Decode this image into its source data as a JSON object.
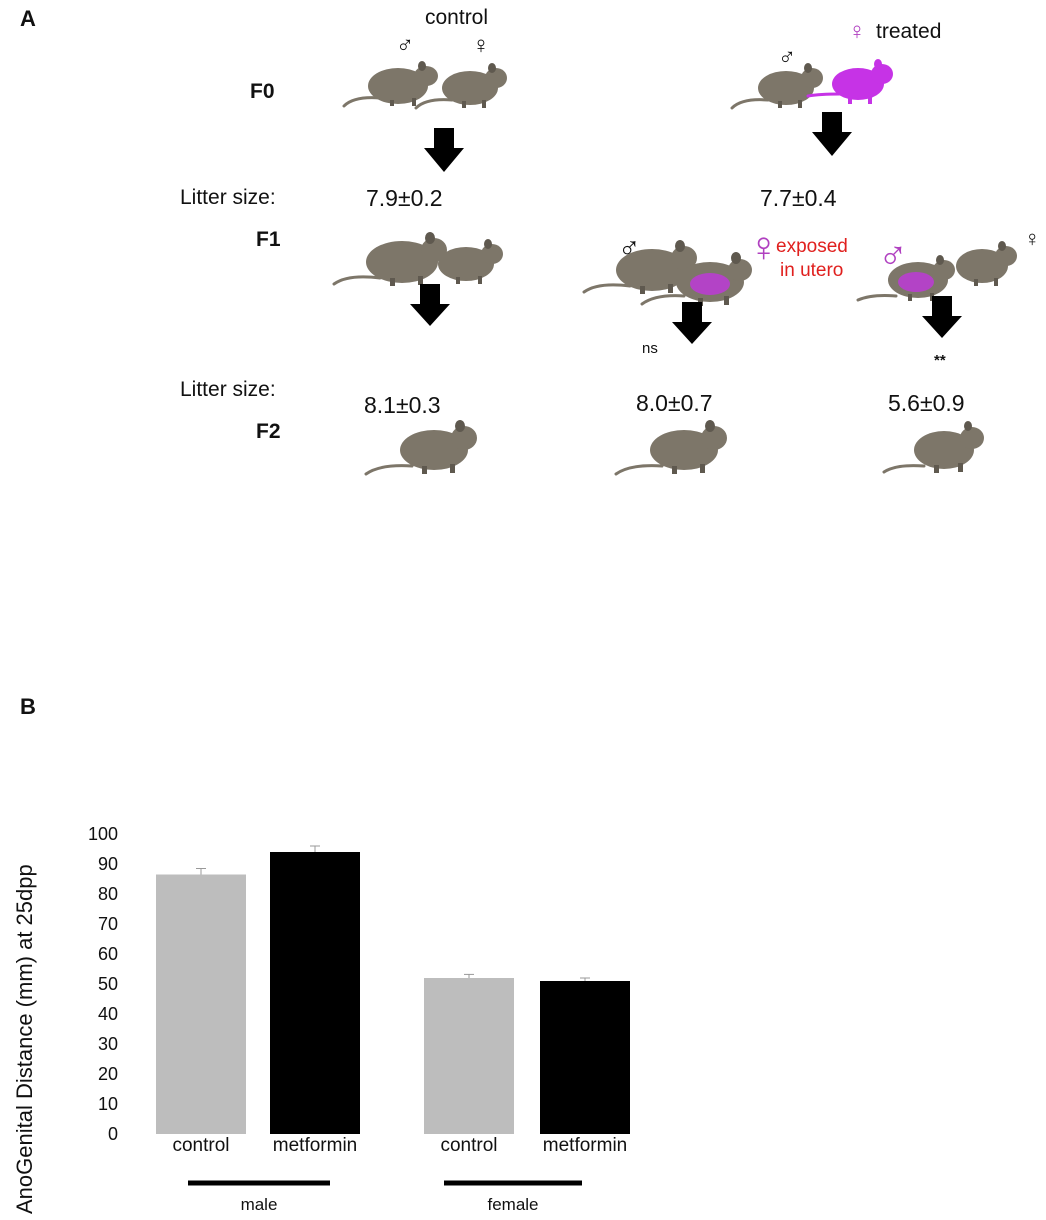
{
  "panel_a": {
    "label": "A",
    "control_label": "control",
    "treated_label": "treated",
    "male_symbol": "♂",
    "female_symbol": "♀",
    "generations": {
      "f0": "F0",
      "f1": "F1",
      "f2": "F2"
    },
    "litter_size_label": "Litter size:",
    "f1_litter_control": "7.9±0.2",
    "f1_litter_treated": "7.7±0.4",
    "exposed_label_line1": "exposed",
    "exposed_label_line2": "in utero",
    "ns_label": "ns",
    "sig_label": "**",
    "f2_litter_control": "8.1±0.3",
    "f2_litter_exposed_female": "8.0±0.7",
    "f2_litter_exposed_male": "5.6±0.9",
    "colors": {
      "treated": "#c633e6",
      "exposed_text": "#e0201e",
      "mouse": "#7d7669"
    }
  },
  "panel_b": {
    "label": "B"
  },
  "chart_data": {
    "type": "bar",
    "ylabel": "AnoGenital Distance (mm) at 25dpp",
    "ylim": [
      0,
      100
    ],
    "yticks": [
      "0",
      "10",
      "20",
      "30",
      "40",
      "50",
      "60",
      "70",
      "80",
      "90",
      "100"
    ],
    "categories": [
      "control",
      "metformin",
      "control",
      "metformin"
    ],
    "groups": [
      {
        "name": "male",
        "categories": [
          "control",
          "metformin"
        ]
      },
      {
        "name": "female",
        "categories": [
          "control",
          "metformin"
        ]
      }
    ],
    "values": [
      86.5,
      94,
      52,
      51
    ],
    "errors": [
      2,
      2,
      1.2,
      1
    ],
    "colors": [
      "#bdbdbd",
      "#000000",
      "#bdbdbd",
      "#000000"
    ]
  }
}
